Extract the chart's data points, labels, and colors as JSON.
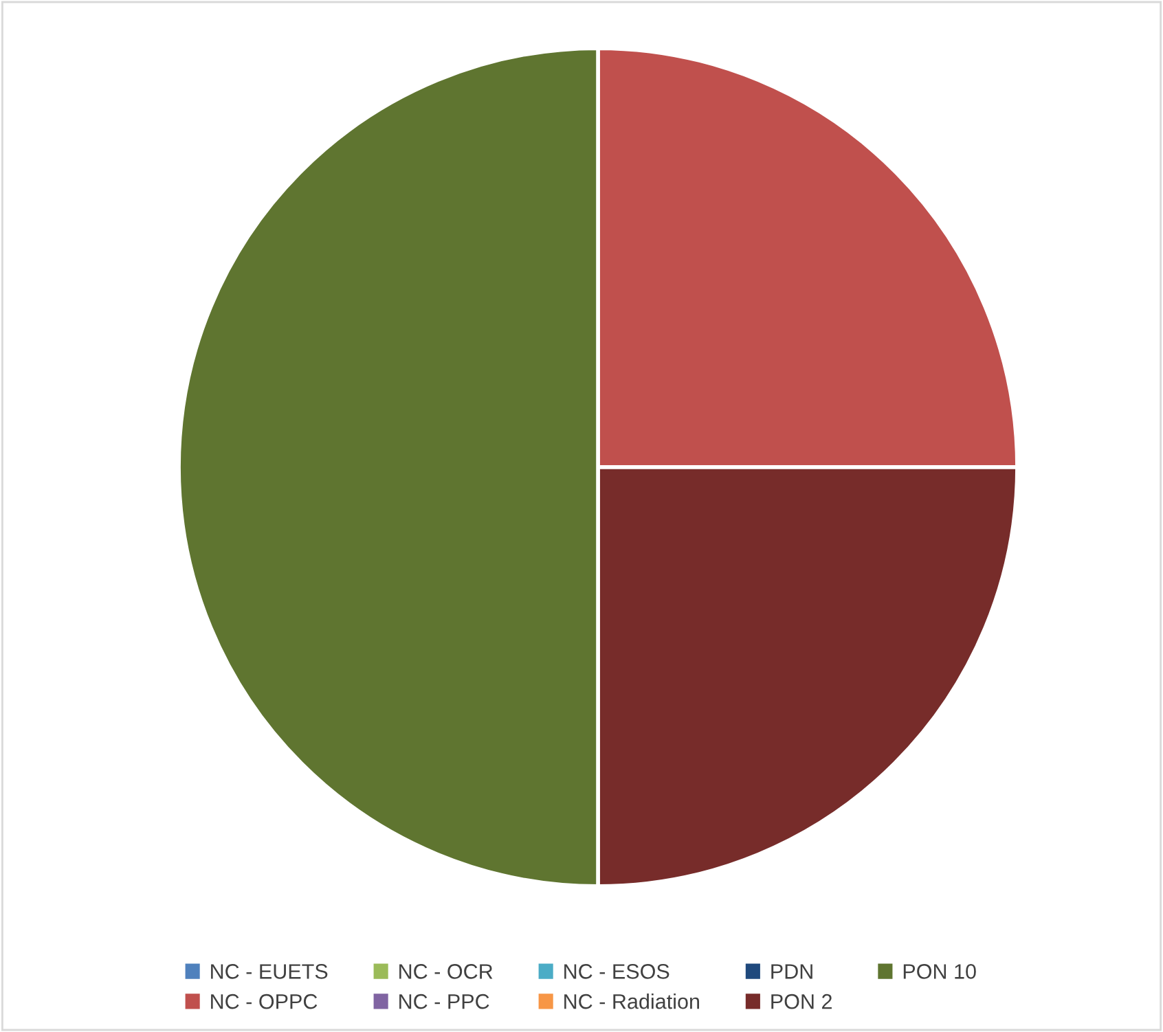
{
  "chart_data": {
    "type": "pie",
    "categories": [
      "NC - EUETS",
      "NC - OPPC",
      "NC - OCR",
      "NC - PPC",
      "NC - ESOS",
      "NC - Radiation",
      "PDN",
      "PON 2",
      "PON 10"
    ],
    "values": [
      0,
      25,
      0,
      0,
      0,
      0,
      0,
      25,
      50
    ],
    "colors": [
      "#4f81bd",
      "#c0504d",
      "#9bbb59",
      "#8064a2",
      "#4bacc6",
      "#f79646",
      "#1f497d",
      "#772c2a",
      "#5f7530"
    ],
    "legend": "bottom"
  }
}
